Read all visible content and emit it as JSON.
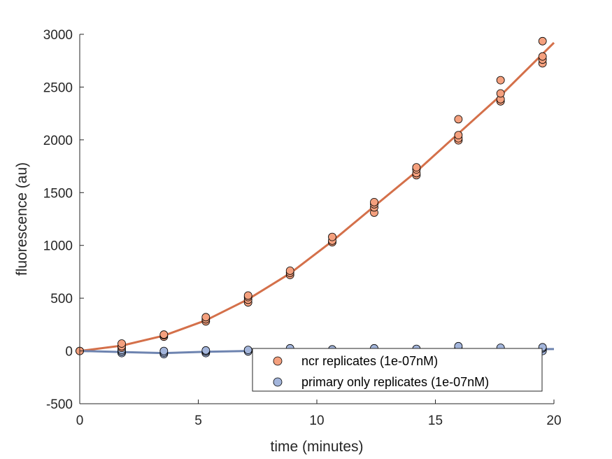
{
  "chart_data": {
    "type": "scatter",
    "title": "",
    "xlabel": "time (minutes)",
    "ylabel": "fluorescence (au)",
    "xlim": [
      0,
      20
    ],
    "ylim": [
      -500,
      3000
    ],
    "xticks": [
      0,
      5,
      10,
      15,
      20
    ],
    "yticks": [
      -500,
      0,
      500,
      1000,
      1500,
      2000,
      2500,
      3000
    ],
    "xtick_labels": [
      "0",
      "5",
      "10",
      "15",
      "20"
    ],
    "ytick_labels": [
      "-500",
      "0",
      "500",
      "1000",
      "1500",
      "2000",
      "2500",
      "3000"
    ],
    "grid": false,
    "legend_position": "bottom-right",
    "series": [
      {
        "name": "ncr replicates (1e-07nM)",
        "color": "#F4A07E",
        "line_color": "#D4704A",
        "points": [
          [
            0,
            0
          ],
          [
            1.77,
            30
          ],
          [
            1.77,
            45
          ],
          [
            1.77,
            70
          ],
          [
            3.55,
            135
          ],
          [
            3.55,
            150
          ],
          [
            3.55,
            155
          ],
          [
            5.32,
            280
          ],
          [
            5.32,
            300
          ],
          [
            5.32,
            320
          ],
          [
            7.1,
            460
          ],
          [
            7.1,
            485
          ],
          [
            7.1,
            510
          ],
          [
            7.1,
            525
          ],
          [
            8.87,
            720
          ],
          [
            8.87,
            740
          ],
          [
            8.87,
            760
          ],
          [
            10.65,
            1030
          ],
          [
            10.65,
            1045
          ],
          [
            10.65,
            1080
          ],
          [
            12.42,
            1310
          ],
          [
            12.42,
            1360
          ],
          [
            12.42,
            1390
          ],
          [
            12.42,
            1410
          ],
          [
            14.2,
            1665
          ],
          [
            14.2,
            1685
          ],
          [
            14.2,
            1720
          ],
          [
            14.2,
            1740
          ],
          [
            15.97,
            1995
          ],
          [
            15.97,
            2015
          ],
          [
            15.97,
            2045
          ],
          [
            15.97,
            2195
          ],
          [
            17.75,
            2365
          ],
          [
            17.75,
            2385
          ],
          [
            17.75,
            2440
          ],
          [
            17.75,
            2565
          ],
          [
            19.52,
            2725
          ],
          [
            19.52,
            2760
          ],
          [
            19.52,
            2790
          ],
          [
            19.52,
            2935
          ]
        ],
        "fit_x": [
          0,
          1.77,
          3.55,
          5.32,
          7.1,
          8.87,
          10.65,
          12.42,
          14.2,
          15.97,
          17.75,
          20
        ],
        "fit_y": [
          0,
          50,
          145,
          290,
          490,
          735,
          1040,
          1370,
          1700,
          2060,
          2420,
          2920
        ]
      },
      {
        "name": "primary only replicates (1e-07nM)",
        "color": "#A3B5DB",
        "line_color": "#6E84B0",
        "points": [
          [
            0,
            0
          ],
          [
            1.77,
            -20
          ],
          [
            1.77,
            -5
          ],
          [
            1.77,
            10
          ],
          [
            3.55,
            -30
          ],
          [
            3.55,
            -15
          ],
          [
            3.55,
            0
          ],
          [
            5.32,
            -20
          ],
          [
            5.32,
            -5
          ],
          [
            5.32,
            5
          ],
          [
            7.1,
            -5
          ],
          [
            7.1,
            10
          ],
          [
            8.87,
            25
          ],
          [
            10.65,
            15
          ],
          [
            12.42,
            20
          ],
          [
            12.42,
            25
          ],
          [
            14.2,
            20
          ],
          [
            15.97,
            25
          ],
          [
            15.97,
            45
          ],
          [
            17.75,
            20
          ],
          [
            17.75,
            30
          ],
          [
            19.52,
            0
          ],
          [
            19.52,
            25
          ],
          [
            19.52,
            35
          ]
        ],
        "fit_x": [
          0,
          1.77,
          3.55,
          5.32,
          7.1,
          8.87,
          10.65,
          12.42,
          14.2,
          15.97,
          17.75,
          20
        ],
        "fit_y": [
          0,
          -10,
          -20,
          -8,
          0,
          5,
          8,
          10,
          12,
          14,
          15,
          18
        ]
      }
    ]
  }
}
